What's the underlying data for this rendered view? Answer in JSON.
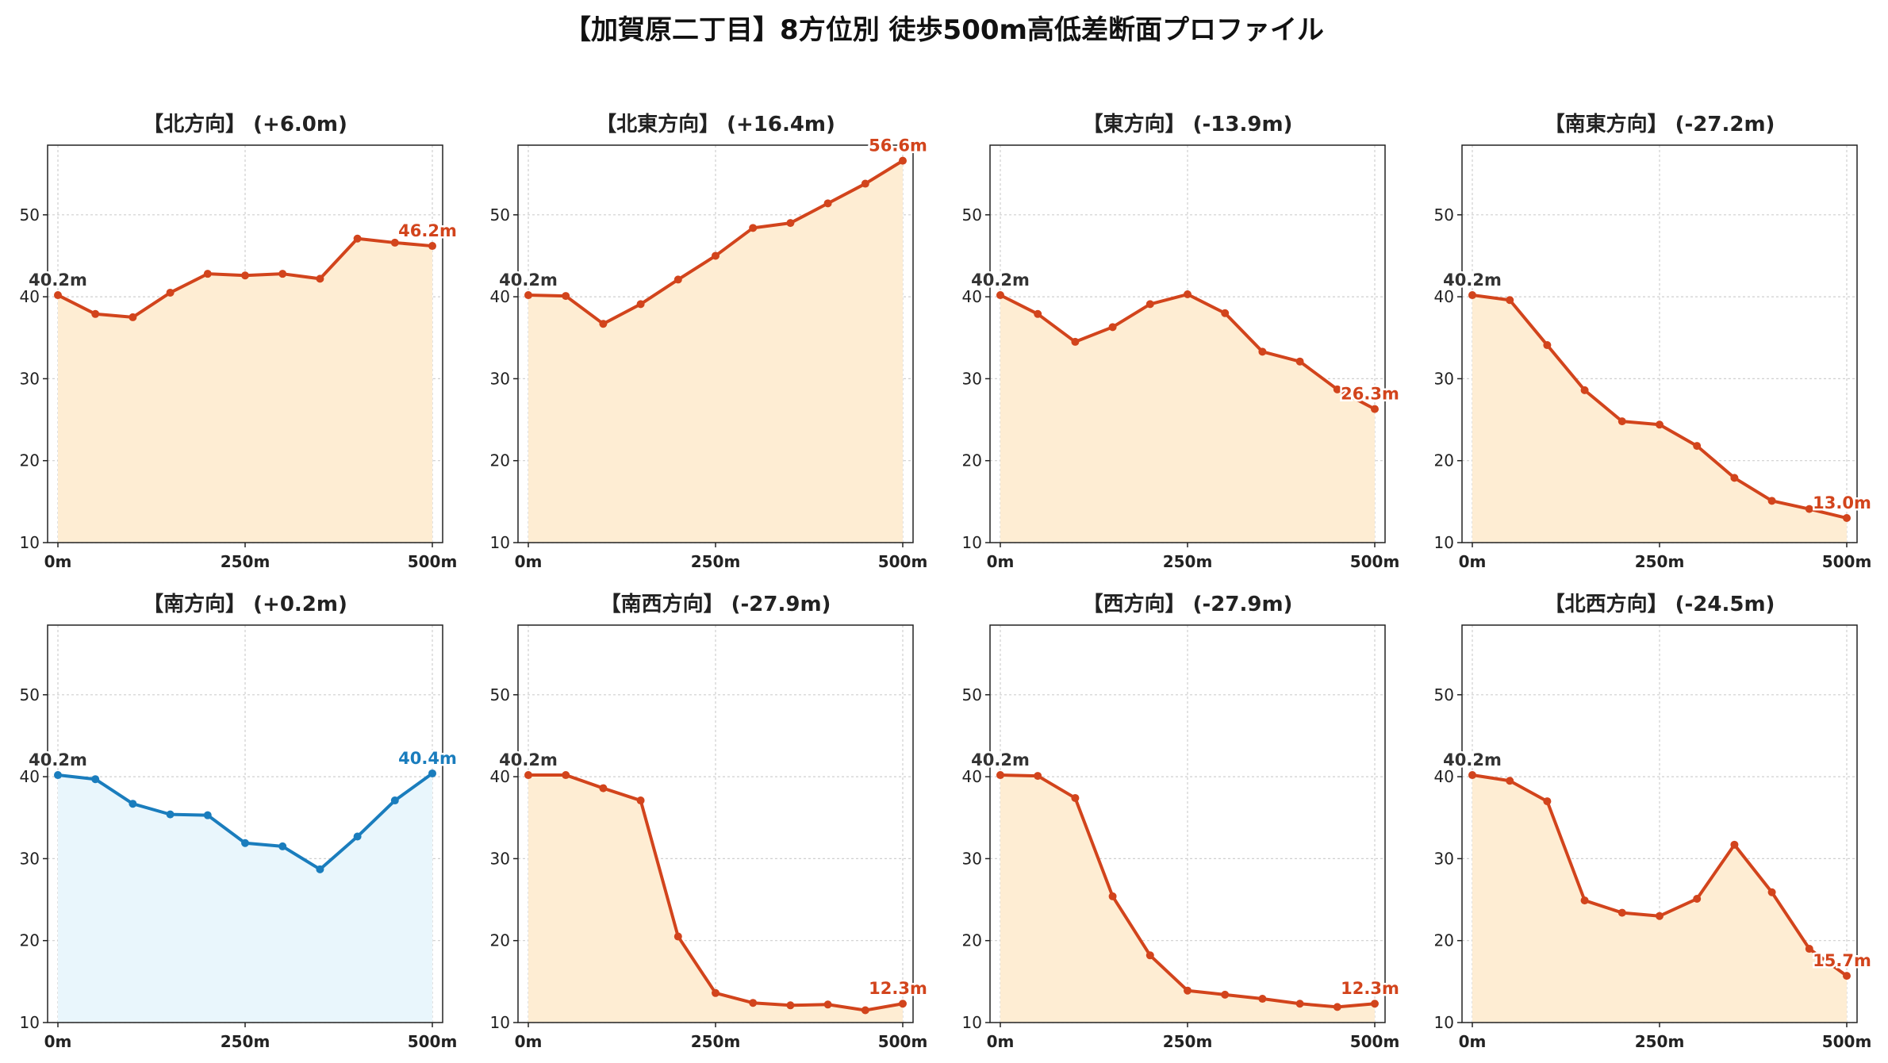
{
  "title": "【加賀原二丁目】8方位別 徒歩500m高低差断面プロファイル",
  "colors": {
    "line_up_down": "#d2441c",
    "fill_up_down": "#feedd3",
    "line_flat": "#1a7dbd",
    "fill_flat": "#e9f6fc",
    "start_label": "#333333"
  },
  "chart_data": [
    {
      "type": "area",
      "title": "【北方向】 (+6.0m)",
      "x": [
        0,
        50,
        100,
        150,
        200,
        250,
        300,
        350,
        400,
        450,
        500
      ],
      "values": [
        40.2,
        37.9,
        37.5,
        40.5,
        42.8,
        42.6,
        42.8,
        42.2,
        47.1,
        46.6,
        46.2
      ],
      "start_label": "40.2m",
      "end_label": "46.2m",
      "color_key": "up_down",
      "xticks": [
        "0m",
        "250m",
        "500m"
      ],
      "yticks": [
        10,
        20,
        30,
        40,
        50
      ],
      "ylim": [
        10,
        58.5
      ],
      "grid": true
    },
    {
      "type": "area",
      "title": "【北東方向】 (+16.4m)",
      "x": [
        0,
        50,
        100,
        150,
        200,
        250,
        300,
        350,
        400,
        450,
        500
      ],
      "values": [
        40.2,
        40.1,
        36.7,
        39.1,
        42.1,
        45.0,
        48.4,
        49.0,
        51.4,
        53.8,
        56.6
      ],
      "start_label": "40.2m",
      "end_label": "56.6m",
      "color_key": "up_down",
      "xticks": [
        "0m",
        "250m",
        "500m"
      ],
      "yticks": [
        10,
        20,
        30,
        40,
        50
      ],
      "ylim": [
        10,
        58.5
      ],
      "grid": true
    },
    {
      "type": "area",
      "title": "【東方向】 (-13.9m)",
      "x": [
        0,
        50,
        100,
        150,
        200,
        250,
        300,
        350,
        400,
        450,
        500
      ],
      "values": [
        40.2,
        37.9,
        34.5,
        36.3,
        39.1,
        40.3,
        38.0,
        33.3,
        32.1,
        28.7,
        26.3
      ],
      "start_label": "40.2m",
      "end_label": "26.3m",
      "color_key": "up_down",
      "xticks": [
        "0m",
        "250m",
        "500m"
      ],
      "yticks": [
        10,
        20,
        30,
        40,
        50
      ],
      "ylim": [
        10,
        58.5
      ],
      "grid": true
    },
    {
      "type": "area",
      "title": "【南東方向】 (-27.2m)",
      "x": [
        0,
        50,
        100,
        150,
        200,
        250,
        300,
        350,
        400,
        450,
        500
      ],
      "values": [
        40.2,
        39.6,
        34.1,
        28.6,
        24.8,
        24.4,
        21.8,
        17.9,
        15.1,
        14.1,
        13.0
      ],
      "start_label": "40.2m",
      "end_label": "13.0m",
      "color_key": "up_down",
      "xticks": [
        "0m",
        "250m",
        "500m"
      ],
      "yticks": [
        10,
        20,
        30,
        40,
        50
      ],
      "ylim": [
        10,
        58.5
      ],
      "grid": true
    },
    {
      "type": "area",
      "title": "【南方向】 (+0.2m)",
      "x": [
        0,
        50,
        100,
        150,
        200,
        250,
        300,
        350,
        400,
        450,
        500
      ],
      "values": [
        40.2,
        39.7,
        36.7,
        35.4,
        35.3,
        31.9,
        31.5,
        28.7,
        32.7,
        37.1,
        40.4
      ],
      "start_label": "40.2m",
      "end_label": "40.4m",
      "color_key": "flat",
      "xticks": [
        "0m",
        "250m",
        "500m"
      ],
      "yticks": [
        10,
        20,
        30,
        40,
        50
      ],
      "ylim": [
        10,
        58.5
      ],
      "grid": true
    },
    {
      "type": "area",
      "title": "【南西方向】 (-27.9m)",
      "x": [
        0,
        50,
        100,
        150,
        200,
        250,
        300,
        350,
        400,
        450,
        500
      ],
      "values": [
        40.2,
        40.2,
        38.6,
        37.1,
        20.5,
        13.6,
        12.4,
        12.1,
        12.2,
        11.5,
        12.3
      ],
      "start_label": "40.2m",
      "end_label": "12.3m",
      "color_key": "up_down",
      "xticks": [
        "0m",
        "250m",
        "500m"
      ],
      "yticks": [
        10,
        20,
        30,
        40,
        50
      ],
      "ylim": [
        10,
        58.5
      ],
      "grid": true
    },
    {
      "type": "area",
      "title": "【西方向】 (-27.9m)",
      "x": [
        0,
        50,
        100,
        150,
        200,
        250,
        300,
        350,
        400,
        450,
        500
      ],
      "values": [
        40.2,
        40.1,
        37.4,
        25.4,
        18.2,
        13.9,
        13.4,
        12.9,
        12.3,
        11.9,
        12.3
      ],
      "start_label": "40.2m",
      "end_label": "12.3m",
      "color_key": "up_down",
      "xticks": [
        "0m",
        "250m",
        "500m"
      ],
      "yticks": [
        10,
        20,
        30,
        40,
        50
      ],
      "ylim": [
        10,
        58.5
      ],
      "grid": true
    },
    {
      "type": "area",
      "title": "【北西方向】 (-24.5m)",
      "x": [
        0,
        50,
        100,
        150,
        200,
        250,
        300,
        350,
        400,
        450,
        500
      ],
      "values": [
        40.2,
        39.5,
        37.0,
        24.9,
        23.4,
        23.0,
        25.1,
        31.7,
        25.9,
        19.0,
        15.7
      ],
      "start_label": "40.2m",
      "end_label": "15.7m",
      "color_key": "up_down",
      "xticks": [
        "0m",
        "250m",
        "500m"
      ],
      "yticks": [
        10,
        20,
        30,
        40,
        50
      ],
      "ylim": [
        10,
        58.5
      ],
      "grid": true
    }
  ]
}
